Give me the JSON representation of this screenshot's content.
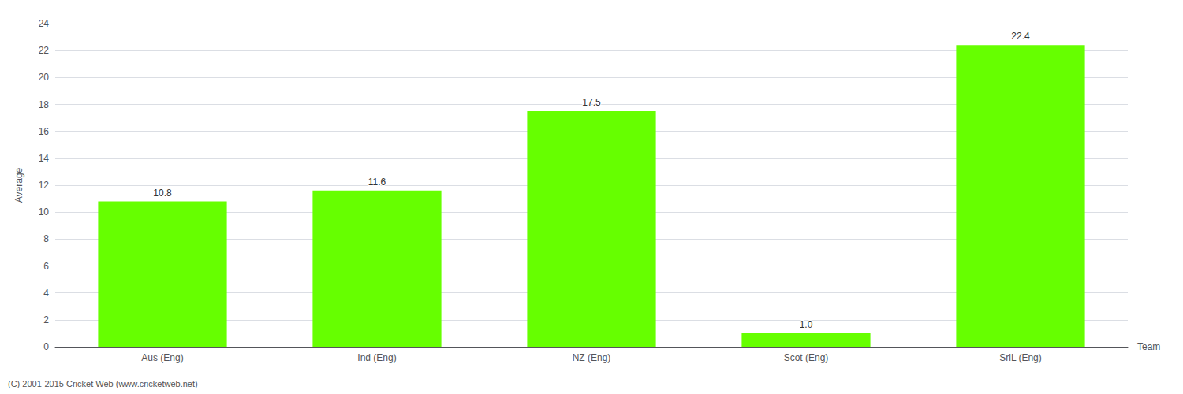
{
  "chart_data": {
    "type": "bar",
    "categories": [
      "Aus (Eng)",
      "Ind (Eng)",
      "NZ (Eng)",
      "Scot (Eng)",
      "SriL (Eng)"
    ],
    "values": [
      10.8,
      11.6,
      17.5,
      1.0,
      22.4
    ],
    "value_labels": [
      "10.8",
      "11.6",
      "17.5",
      "1.0",
      "22.4"
    ],
    "color": "#66ff00",
    "xlabel": "Team",
    "ylabel": "Average",
    "footer": "(C) 2001-2015 Cricket Web (www.cricketweb.net)",
    "ylim": [
      0,
      24
    ],
    "yticks": [
      0,
      2,
      4,
      6,
      8,
      10,
      12,
      14,
      16,
      18,
      20,
      22,
      24
    ],
    "grid": true,
    "data_labels": true
  }
}
